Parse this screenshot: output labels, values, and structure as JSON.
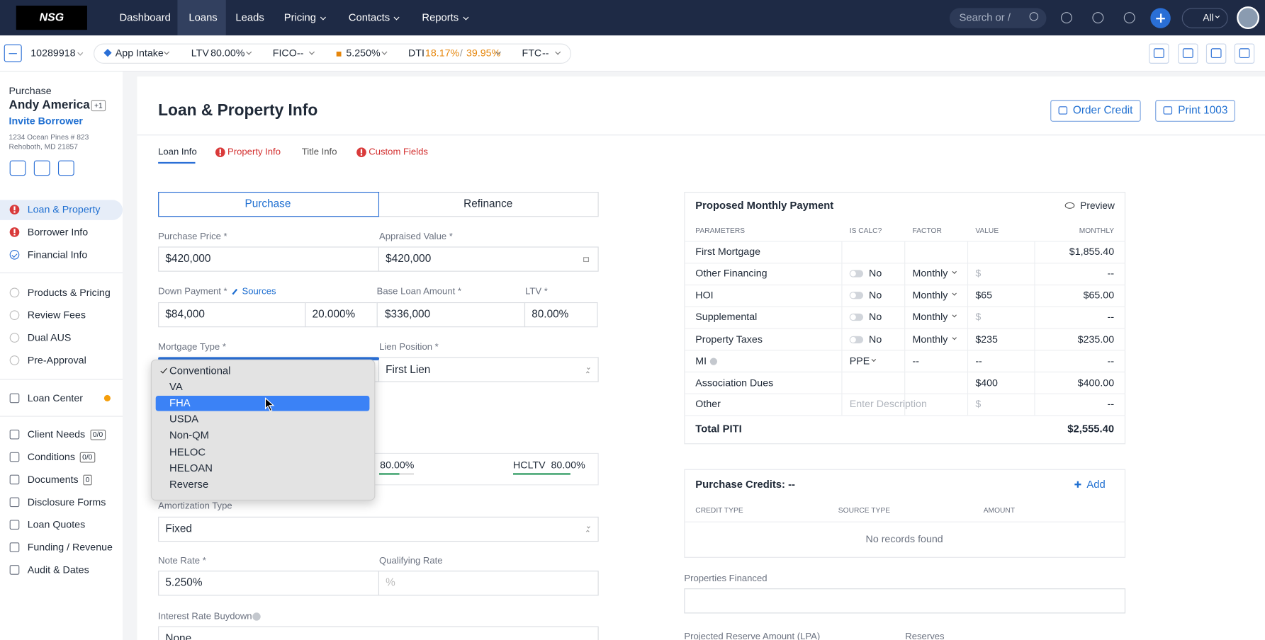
{
  "nav": {
    "logo": "NSG",
    "items": [
      "Dashboard",
      "Loans",
      "Leads",
      "Pricing",
      "Contacts",
      "Reports"
    ],
    "search": "Search or /",
    "scope": "All"
  },
  "loanbar": {
    "loan_number": "10289918",
    "stage": "App Intake",
    "ltv_label": "LTV",
    "ltv": "80.00%",
    "fico_label": "FICO",
    "fico": "--",
    "rate": "5.250%",
    "dti_label": "DTI",
    "dti_front": "18.17%",
    "dti_sep": "/",
    "dti_back": "39.95%",
    "ftc_label": "FTC",
    "ftc": "--"
  },
  "borrower": {
    "loan_purpose": "Purchase",
    "name": "Andy America",
    "coborrowers": "+1",
    "invite": "Invite Borrower",
    "address1": "1234 Ocean Pines # 823",
    "address2": "Rehoboth, MD 21857"
  },
  "sidebar": {
    "items": [
      {
        "label": "Loan & Property"
      },
      {
        "label": "Borrower Info"
      },
      {
        "label": "Financial Info"
      },
      {
        "label": "Products & Pricing"
      },
      {
        "label": "Review Fees"
      },
      {
        "label": "Dual AUS"
      },
      {
        "label": "Pre-Approval"
      },
      {
        "label": "Loan Center"
      },
      {
        "label": "Client Needs",
        "badge": "0/0"
      },
      {
        "label": "Conditions",
        "badge": "0/0"
      },
      {
        "label": "Documents",
        "badge": "0"
      },
      {
        "label": "Disclosure Forms"
      },
      {
        "label": "Loan Quotes"
      },
      {
        "label": "Funding / Revenue"
      },
      {
        "label": "Audit & Dates"
      }
    ]
  },
  "page": {
    "title": "Loan & Property Info",
    "buttons": [
      "Order Credit",
      "Print 1003"
    ],
    "tabs": [
      "Loan Info",
      "Property Info",
      "Title Info",
      "Custom Fields"
    ]
  },
  "form": {
    "purpose_options": [
      "Purchase",
      "Refinance"
    ],
    "purchase_price": {
      "label": "Purchase Price *",
      "value": "$420,000"
    },
    "appraised_value": {
      "label": "Appraised Value *",
      "value": "$420,000"
    },
    "down_payment": {
      "label": "Down Payment *",
      "sources": "Sources",
      "value": "$84,000",
      "percent": "20.000%"
    },
    "base_loan_amount": {
      "label": "Base Loan Amount *",
      "value": "$336,000"
    },
    "ltv": {
      "label": "LTV *",
      "value": "80.00%"
    },
    "mortgage_type": {
      "label": "Mortgage Type *"
    },
    "lien_position": {
      "label": "Lien Position *",
      "value": "First Lien"
    },
    "cltv": {
      "value": "80.00%"
    },
    "hcltv": {
      "label": "HCLTV",
      "value": "80.00%"
    },
    "amortization_type": {
      "label": "Amortization Type",
      "value": "Fixed"
    },
    "note_rate": {
      "label": "Note Rate *",
      "value": "5.250%"
    },
    "qualifying_rate": {
      "label": "Qualifying Rate",
      "placeholder": "%"
    },
    "interest_rate_buydown": {
      "label": "Interest Rate Buydown",
      "value": "None"
    }
  },
  "dropdown": {
    "options": [
      "Conventional",
      "VA",
      "FHA",
      "USDA",
      "Non-QM",
      "HELOC",
      "HELOAN",
      "Reverse"
    ]
  },
  "payment": {
    "title": "Proposed Monthly Payment",
    "preview": "Preview",
    "columns": [
      "PARAMETERS",
      "IS CALC?",
      "FACTOR",
      "VALUE",
      "MONTHLY"
    ],
    "rows": [
      [
        "First Mortgage",
        "",
        "",
        "",
        "$1,855.40"
      ],
      [
        "Other Financing",
        "No",
        "Monthly",
        "$",
        "--"
      ],
      [
        "HOI",
        "No",
        "Monthly",
        "$65",
        "$65.00"
      ],
      [
        "Supplemental",
        "No",
        "Monthly",
        "$",
        "--"
      ],
      [
        "Property Taxes",
        "No",
        "Monthly",
        "$235",
        "$235.00"
      ],
      [
        "MI",
        "PPE",
        "--",
        "--",
        "--"
      ],
      [
        "Association Dues",
        "",
        "",
        "$400",
        "$400.00"
      ],
      [
        "Other",
        "Enter Description",
        "",
        "$",
        "--"
      ]
    ],
    "total_label": "Total PITI",
    "total": "$2,555.40"
  },
  "credits": {
    "title": "Purchase Credits: --",
    "add": "Add",
    "columns": [
      "CREDIT TYPE",
      "SOURCE TYPE",
      "AMOUNT"
    ],
    "empty": "No records found"
  },
  "properties_financed": {
    "label": "Properties Financed"
  },
  "reserves": {
    "projected_label": "Projected Reserve Amount (LPA)",
    "reserves_label": "Reserves"
  }
}
